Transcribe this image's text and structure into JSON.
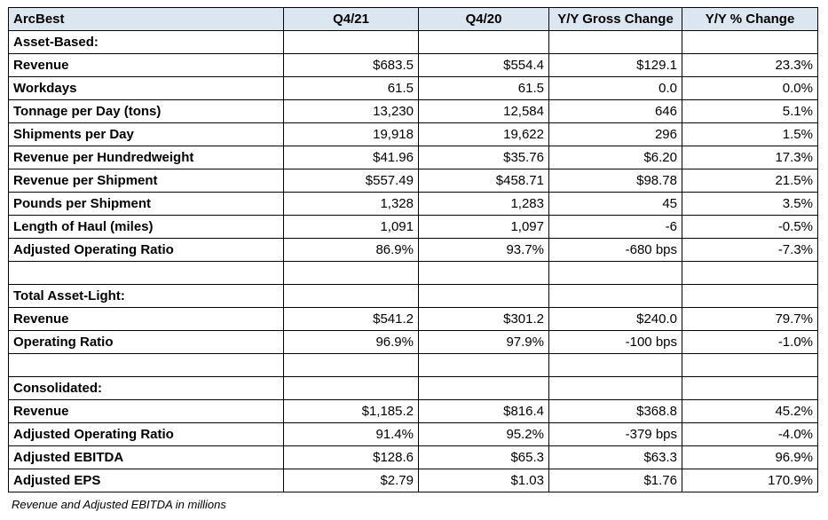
{
  "table": {
    "headers": [
      "ArcBest",
      "Q4/21",
      "Q4/20",
      "Y/Y Gross Change",
      "Y/Y % Change"
    ],
    "rows": [
      {
        "label": "Asset-Based:",
        "values": [
          "",
          "",
          "",
          ""
        ]
      },
      {
        "label": "Revenue",
        "values": [
          "$683.5",
          "$554.4",
          "$129.1",
          "23.3%"
        ]
      },
      {
        "label": "Workdays",
        "values": [
          "61.5",
          "61.5",
          "0.0",
          "0.0%"
        ]
      },
      {
        "label": "Tonnage per Day (tons)",
        "values": [
          "13,230",
          "12,584",
          "646",
          "5.1%"
        ]
      },
      {
        "label": "Shipments per Day",
        "values": [
          "19,918",
          "19,622",
          "296",
          "1.5%"
        ]
      },
      {
        "label": "Revenue per Hundredweight",
        "values": [
          "$41.96",
          "$35.76",
          "$6.20",
          "17.3%"
        ]
      },
      {
        "label": "Revenue per Shipment",
        "values": [
          "$557.49",
          "$458.71",
          "$98.78",
          "21.5%"
        ]
      },
      {
        "label": "Pounds per Shipment",
        "values": [
          "1,328",
          "1,283",
          "45",
          "3.5%"
        ]
      },
      {
        "label": "Length of Haul (miles)",
        "values": [
          "1,091",
          "1,097",
          "-6",
          "-0.5%"
        ]
      },
      {
        "label": "Adjusted Operating Ratio",
        "values": [
          "86.9%",
          "93.7%",
          "-680 bps",
          "-7.3%"
        ]
      },
      {
        "label": "",
        "values": [
          "",
          "",
          "",
          ""
        ]
      },
      {
        "label": "Total Asset-Light:",
        "values": [
          "",
          "",
          "",
          ""
        ]
      },
      {
        "label": "Revenue",
        "values": [
          "$541.2",
          "$301.2",
          "$240.0",
          "79.7%"
        ]
      },
      {
        "label": "Operating Ratio",
        "values": [
          "96.9%",
          "97.9%",
          "-100 bps",
          "-1.0%"
        ]
      },
      {
        "label": "",
        "values": [
          "",
          "",
          "",
          ""
        ]
      },
      {
        "label": "Consolidated:",
        "values": [
          "",
          "",
          "",
          ""
        ]
      },
      {
        "label": "Revenue",
        "values": [
          "$1,185.2",
          "$816.4",
          "$368.8",
          "45.2%"
        ]
      },
      {
        "label": "Adjusted Operating Ratio",
        "values": [
          "91.4%",
          "95.2%",
          "-379 bps",
          "-4.0%"
        ]
      },
      {
        "label": "Adjusted EBITDA",
        "values": [
          "$128.6",
          "$65.3",
          "$63.3",
          "96.9%"
        ]
      },
      {
        "label": "Adjusted EPS",
        "values": [
          "$2.79",
          "$1.03",
          "$1.76",
          "170.9%"
        ]
      }
    ]
  },
  "footnote": "Revenue and Adjusted EBITDA in millions",
  "colors": {
    "header_bg": "#dce6f1",
    "border": "#000000"
  }
}
